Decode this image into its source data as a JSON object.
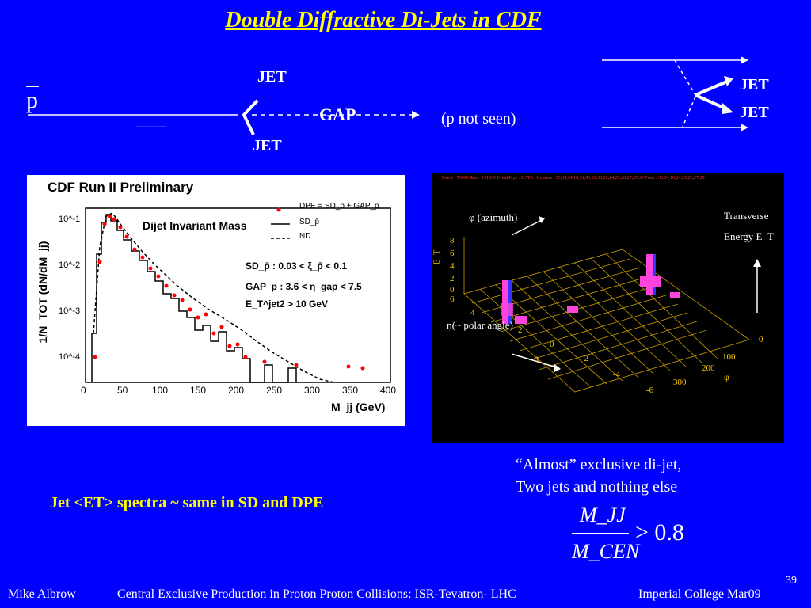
{
  "slide": {
    "title": "Double Diffractive Di-Jets in CDF",
    "page_number": "39"
  },
  "diagram": {
    "proton_bar": "p",
    "jet_top": "JET",
    "jet_bottom": "JET",
    "gap": "GAP",
    "p_not_seen": "(p not seen)",
    "jet_right_1": "JET",
    "jet_right_2": "JET"
  },
  "left_plot": {
    "title": "CDF Run II Preliminary",
    "subtitle": "Dijet Invariant Mass",
    "ylabel": "1/N_TOT (dN/dM_jj)",
    "xlabel": "M_jj (GeV)",
    "legend": [
      "DPE = SD_p̄ + GAP_p",
      "SD_p̄",
      "ND"
    ],
    "cuts": [
      "SD_p̄ : 0.03 < ξ_p̄ < 0.1",
      "GAP_p : 3.6 < η_gap < 7.5",
      "E_T^jet2 > 10 GeV"
    ],
    "x_ticks": [
      "0",
      "50",
      "100",
      "150",
      "200",
      "250",
      "300",
      "350",
      "400"
    ],
    "y_ticks": [
      "10^-1",
      "10^-2",
      "10^-3",
      "10^-4"
    ]
  },
  "right_plot": {
    "header": "Event : 76696  Run : 151930  EventType : DATA | Unpress : 33,34,24,10,31,43,19,38,23,24,25,26,27,29,30 Prsnt : 33,34,10,24,25,26,27,29",
    "phi_label": "φ (azimuth)",
    "eta_label": "η(~ polar angle)",
    "et_axis": "E_T",
    "et_ticks": [
      "8",
      "6",
      "4",
      "2",
      "0",
      "6"
    ],
    "eta_ticks": [
      "4",
      "2",
      "0",
      "-2",
      "-4",
      "-6"
    ],
    "phi_ticks": [
      "0",
      "100",
      "200",
      "300"
    ],
    "transverse": "Transverse",
    "energy": "Energy E_T",
    "eta_sym": "η",
    "phi_sym": "φ"
  },
  "notes": {
    "line1": "“Almost” exclusive di-jet,",
    "line2": "Two jets and nothing else",
    "ratio_num": "M_JJ",
    "ratio_den": "M_CEN",
    "ratio_cmp": "> 0.8",
    "jet_spectra": "Jet <ET> spectra ~ same in SD and DPE"
  },
  "footer": {
    "author": "Mike Albrow",
    "talk": "Central Exclusive Production in Proton Proton Collisions: ISR-Tevatron- LHC",
    "venue": "Imperial College Mar09"
  },
  "colors": {
    "background": "#0000ff",
    "title": "#ffff00",
    "data_red": "#ff0000"
  }
}
